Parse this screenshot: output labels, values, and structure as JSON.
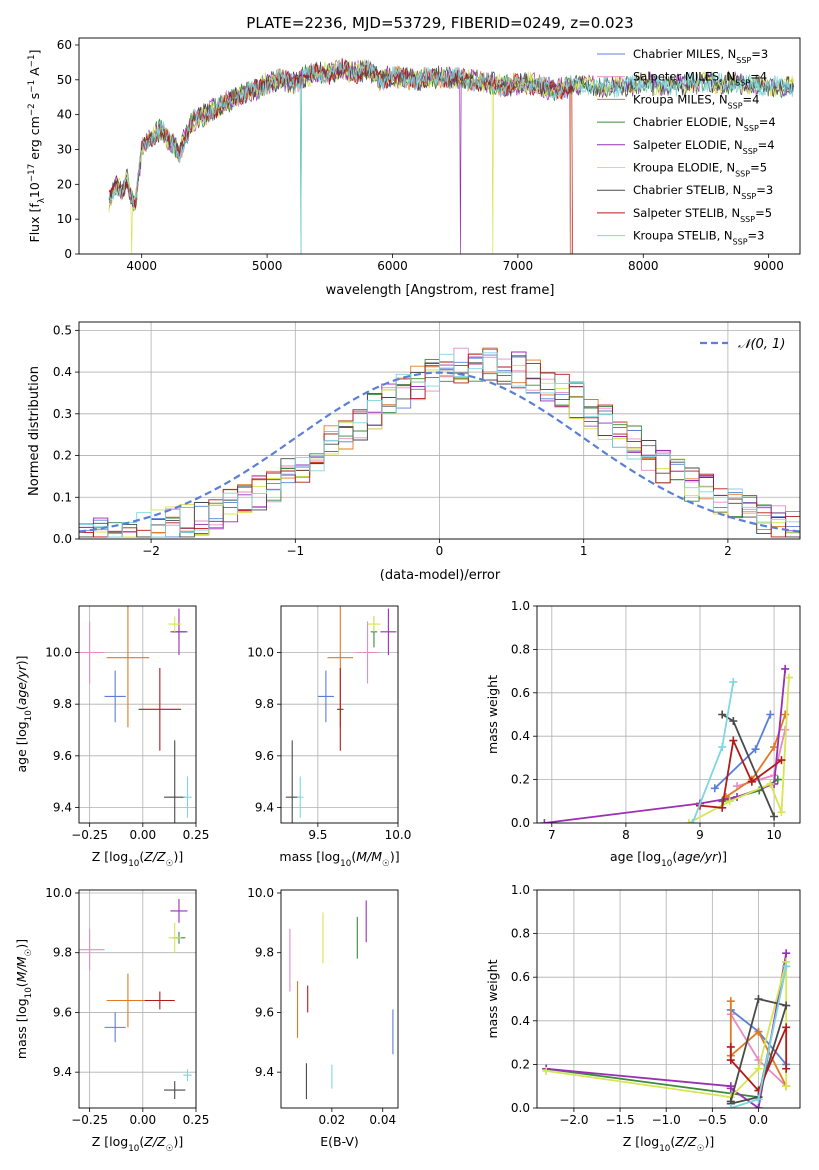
{
  "figure_title": "PLATE=2236, MJD=53729, FIBERID=0249, z=0.023",
  "colors": {
    "c0": "#5b7fd6",
    "c1": "#e58cc4",
    "c2": "#e07a23",
    "c3": "#3a8a3a",
    "c4": "#9a2fb5",
    "c5": "#d6e550",
    "c6": "#4a4a4a",
    "c7": "#b01b1b",
    "c8": "#7ed6e0",
    "gauss": "#5b7fd6",
    "grid": "#b0b0b0"
  },
  "chart_data": [
    {
      "id": "spectrum",
      "type": "line",
      "title": "PLATE=2236, MJD=53729, FIBERID=0249, z=0.023",
      "xlabel": "wavelength [Angstrom, rest frame]",
      "ylabel": "Flux [f_λ10^-17 erg cm^-2 s^-1 A^-1]",
      "xlim": [
        3500,
        9250
      ],
      "ylim": [
        0,
        62
      ],
      "xticks": [
        4000,
        5000,
        6000,
        7000,
        8000,
        9000
      ],
      "yticks": [
        0,
        10,
        20,
        30,
        40,
        50,
        60
      ],
      "grid": false,
      "legend_position": "top-right",
      "legend": [
        {
          "model": "Chabrier MILES",
          "n": "3"
        },
        {
          "model": "Salpeter MILES",
          "n": "4"
        },
        {
          "model": "Kroupa MILES",
          "n": "4"
        },
        {
          "model": "Chabrier ELODIE",
          "n": "4"
        },
        {
          "model": "Salpeter ELODIE",
          "n": "4"
        },
        {
          "model": "Kroupa ELODIE",
          "n": "5"
        },
        {
          "model": "Chabrier STELIB",
          "n": "3"
        },
        {
          "model": "Salpeter STELIB",
          "n": "5"
        },
        {
          "model": "Kroupa STELIB",
          "n": "3"
        }
      ],
      "x": [
        3740,
        3800,
        3850,
        3880,
        3920,
        3950,
        4000,
        4050,
        4100,
        4150,
        4200,
        4250,
        4300,
        4350,
        4400,
        4500,
        4600,
        4700,
        4800,
        4900,
        5000,
        5100,
        5200,
        5300,
        5400,
        5500,
        5600,
        5700,
        5800,
        5900,
        6000,
        6200,
        6400,
        6600,
        6800,
        6900,
        7000,
        7100,
        7200,
        7300,
        7400,
        7500,
        7600,
        7800,
        8000,
        8200,
        8400,
        8600,
        8800,
        9000,
        9200
      ],
      "y": [
        15,
        20,
        18,
        22,
        16,
        14,
        30,
        33,
        34,
        36,
        33,
        32,
        29,
        34,
        38,
        40,
        42,
        44,
        46,
        47,
        49,
        50,
        49,
        51,
        52,
        52,
        53,
        52,
        53,
        50,
        51,
        50,
        51,
        50,
        49,
        48,
        49,
        49,
        48,
        47,
        48,
        49,
        48,
        48,
        49,
        48,
        49,
        49,
        49,
        48,
        48
      ],
      "end_wavelength": {
        "Salpeter STELIB": 7440,
        "Salpeter MILES": 7420,
        "Kroupa MILES": 7430,
        "Chabrier MILES": 7420
      },
      "dips": [
        {
          "x": 3920,
          "depth": 0
        },
        {
          "x": 5270,
          "depth": 0
        },
        {
          "x": 6540,
          "depth": 0
        },
        {
          "x": 6800,
          "depth": 0
        }
      ]
    },
    {
      "id": "residuals",
      "type": "line",
      "xlabel": "(data-model)/error",
      "ylabel": "Normed distribution",
      "xlim": [
        -2.5,
        2.5
      ],
      "ylim": [
        0,
        0.52
      ],
      "xticks": [
        -2,
        -1,
        0,
        1,
        2
      ],
      "yticks": [
        0.0,
        0.1,
        0.2,
        0.3,
        0.4,
        0.5
      ],
      "grid": true,
      "legend_position": "top-right",
      "gaussian_label": "𝒩(0, 1)",
      "bin_width": 0.1
    },
    {
      "id": "age-vs-Z",
      "type": "scatter",
      "xlabel": "Z [log10(Z/Z☉)]",
      "ylabel": "age  [log10(age/yr)]",
      "xlim": [
        -0.3,
        0.25
      ],
      "ylim": [
        9.34,
        10.18
      ],
      "xticks": [
        -0.25,
        0.0,
        0.25
      ],
      "yticks": [
        9.4,
        9.6,
        9.8,
        10.0
      ],
      "grid": true,
      "points": [
        {
          "x": -0.13,
          "y": 9.83,
          "xerr": 0.05,
          "yerr": 0.1,
          "c": "c0"
        },
        {
          "x": -0.25,
          "y": 10.0,
          "xerr": 0.07,
          "yerr": 0.12,
          "c": "c1"
        },
        {
          "x": -0.07,
          "y": 9.98,
          "xerr": 0.1,
          "yerr": 0.27,
          "c": "c2"
        },
        {
          "x": 0.17,
          "y": 10.08,
          "xerr": 0.03,
          "yerr": 0.03,
          "c": "c3"
        },
        {
          "x": 0.17,
          "y": 10.08,
          "xerr": 0.04,
          "yerr": 0.09,
          "c": "c4"
        },
        {
          "x": 0.15,
          "y": 10.11,
          "xerr": 0.03,
          "yerr": 0.03,
          "c": "c5"
        },
        {
          "x": 0.15,
          "y": 9.44,
          "xerr": 0.05,
          "yerr": 0.22,
          "c": "c6"
        },
        {
          "x": 0.08,
          "y": 9.78,
          "xerr": 0.1,
          "yerr": 0.16,
          "c": "c7"
        },
        {
          "x": 0.21,
          "y": 9.44,
          "xerr": 0.02,
          "yerr": 0.08,
          "c": "c8"
        }
      ]
    },
    {
      "id": "age-vs-mass",
      "type": "scatter",
      "xlabel": "mass [log10(M/M☉)]",
      "ylabel": "",
      "xlim": [
        9.27,
        10.0
      ],
      "ylim": [
        9.34,
        10.18
      ],
      "xticks": [
        9.5,
        10.0
      ],
      "yticks": [
        9.4,
        9.6,
        9.8,
        10.0
      ],
      "grid": true,
      "points": [
        {
          "x": 9.55,
          "y": 9.83,
          "xerr": 0.05,
          "yerr": 0.1,
          "c": "c0"
        },
        {
          "x": 9.81,
          "y": 10.0,
          "xerr": 0.07,
          "yerr": 0.12,
          "c": "c1"
        },
        {
          "x": 9.64,
          "y": 9.98,
          "xerr": 0.08,
          "yerr": 0.27,
          "c": "c2"
        },
        {
          "x": 9.85,
          "y": 10.08,
          "xerr": 0.02,
          "yerr": 0.06,
          "c": "c3"
        },
        {
          "x": 9.94,
          "y": 10.08,
          "xerr": 0.05,
          "yerr": 0.09,
          "c": "c4"
        },
        {
          "x": 9.85,
          "y": 10.11,
          "xerr": 0.04,
          "yerr": 0.03,
          "c": "c5"
        },
        {
          "x": 9.34,
          "y": 9.44,
          "xerr": 0.04,
          "yerr": 0.22,
          "c": "c6"
        },
        {
          "x": 9.64,
          "y": 9.78,
          "xerr": 0.02,
          "yerr": 0.16,
          "c": "c7"
        },
        {
          "x": 9.39,
          "y": 9.44,
          "xerr": 0.02,
          "yerr": 0.08,
          "c": "c8"
        }
      ]
    },
    {
      "id": "weight-vs-age",
      "type": "line",
      "xlabel": "age  [log10(age/yr)]",
      "ylabel": "mass weight",
      "xlim": [
        6.8,
        10.35
      ],
      "ylim": [
        0,
        1
      ],
      "xticks": [
        7,
        8,
        9,
        10
      ],
      "yticks": [
        0.0,
        0.2,
        0.4,
        0.6,
        0.8,
        1.0
      ],
      "grid": true,
      "series": [
        {
          "c": "c0",
          "x": [
            9.2,
            9.75,
            9.95
          ],
          "y": [
            0.16,
            0.34,
            0.5
          ]
        },
        {
          "c": "c1",
          "x": [
            9.5,
            9.8,
            10.0,
            10.15
          ],
          "y": [
            0.17,
            0.2,
            0.22,
            0.43
          ]
        },
        {
          "c": "c2",
          "x": [
            9.35,
            9.7,
            10.0,
            10.15
          ],
          "y": [
            0.12,
            0.2,
            0.35,
            0.5
          ]
        },
        {
          "c": "c3",
          "x": [
            9.3,
            9.8,
            10.05
          ],
          "y": [
            0.1,
            0.15,
            0.2
          ]
        },
        {
          "c": "c4",
          "x": [
            6.9,
            9.0,
            9.5,
            10.0,
            10.15
          ],
          "y": [
            0.0,
            0.09,
            0.12,
            0.18,
            0.71
          ]
        },
        {
          "c": "c5",
          "x": [
            8.85,
            9.4,
            9.95,
            10.1,
            10.2
          ],
          "y": [
            0.0,
            0.1,
            0.18,
            0.05,
            0.67
          ]
        },
        {
          "c": "c6",
          "x": [
            9.3,
            9.45,
            10.0
          ],
          "y": [
            0.5,
            0.47,
            0.03
          ]
        },
        {
          "c": "c7",
          "x": [
            9.0,
            9.3,
            9.45,
            9.7,
            10.1
          ],
          "y": [
            0.08,
            0.07,
            0.38,
            0.19,
            0.29
          ]
        },
        {
          "c": "c8",
          "x": [
            8.9,
            9.3,
            9.45
          ],
          "y": [
            0.0,
            0.35,
            0.65
          ]
        }
      ]
    },
    {
      "id": "mass-vs-Z",
      "type": "scatter",
      "xlabel": "Z [log10(Z/Z☉)]",
      "ylabel": "mass [log10(M/M☉)]",
      "xlim": [
        -0.3,
        0.25
      ],
      "ylim": [
        9.28,
        10.01
      ],
      "xticks": [
        -0.25,
        0.0,
        0.25
      ],
      "yticks": [
        9.4,
        9.6,
        9.8,
        10.0
      ],
      "grid": true,
      "points": [
        {
          "x": -0.13,
          "y": 9.55,
          "xerr": 0.05,
          "yerr": 0.05,
          "c": "c0"
        },
        {
          "x": -0.25,
          "y": 9.81,
          "xerr": 0.07,
          "yerr": 0.07,
          "c": "c1"
        },
        {
          "x": -0.07,
          "y": 9.64,
          "xerr": 0.1,
          "yerr": 0.09,
          "c": "c2"
        },
        {
          "x": 0.17,
          "y": 9.85,
          "xerr": 0.03,
          "yerr": 0.02,
          "c": "c3"
        },
        {
          "x": 0.17,
          "y": 9.94,
          "xerr": 0.04,
          "yerr": 0.04,
          "c": "c4"
        },
        {
          "x": 0.15,
          "y": 9.85,
          "xerr": 0.03,
          "yerr": 0.05,
          "c": "c5"
        },
        {
          "x": 0.15,
          "y": 9.34,
          "xerr": 0.05,
          "yerr": 0.03,
          "c": "c6"
        },
        {
          "x": 0.08,
          "y": 9.64,
          "xerr": 0.07,
          "yerr": 0.03,
          "c": "c7"
        },
        {
          "x": 0.21,
          "y": 9.39,
          "xerr": 0.02,
          "yerr": 0.02,
          "c": "c8"
        }
      ]
    },
    {
      "id": "mass-vs-ebv",
      "type": "scatter",
      "xlabel": "E(B-V)",
      "ylabel": "",
      "xlim": [
        0.0,
        0.046
      ],
      "ylim": [
        9.28,
        10.01
      ],
      "xticks": [
        0.02,
        0.04
      ],
      "yticks": [
        9.4,
        9.6,
        9.8,
        10.0
      ],
      "grid": false,
      "points": [
        {
          "x": 0.044,
          "y": 9.535,
          "xerr": 0,
          "yerr": 0.075,
          "c": "c0"
        },
        {
          "x": 0.0035,
          "y": 9.775,
          "xerr": 0,
          "yerr": 0.105,
          "c": "c1"
        },
        {
          "x": 0.0065,
          "y": 9.61,
          "xerr": 0,
          "yerr": 0.095,
          "c": "c2"
        },
        {
          "x": 0.03,
          "y": 9.85,
          "xerr": 0,
          "yerr": 0.07,
          "c": "c3"
        },
        {
          "x": 0.0335,
          "y": 9.905,
          "xerr": 0,
          "yerr": 0.07,
          "c": "c4"
        },
        {
          "x": 0.0165,
          "y": 9.85,
          "xerr": 0,
          "yerr": 0.085,
          "c": "c5"
        },
        {
          "x": 0.01,
          "y": 9.37,
          "xerr": 0,
          "yerr": 0.06,
          "c": "c6"
        },
        {
          "x": 0.0105,
          "y": 9.645,
          "xerr": 0,
          "yerr": 0.045,
          "c": "c7"
        },
        {
          "x": 0.02,
          "y": 9.385,
          "xerr": 0,
          "yerr": 0.04,
          "c": "c8"
        }
      ]
    },
    {
      "id": "weight-vs-Z",
      "type": "line",
      "xlabel": "Z [log10(Z/Z☉)]",
      "ylabel": "mass weight",
      "xlim": [
        -2.4,
        0.45
      ],
      "ylim": [
        0,
        1
      ],
      "xticks": [
        -2.0,
        -1.5,
        -1.0,
        -0.5,
        0.0
      ],
      "yticks": [
        0.0,
        0.2,
        0.4,
        0.6,
        0.8,
        1.0
      ],
      "grid": true,
      "series": [
        {
          "c": "c0",
          "x": [
            -0.3,
            0.0,
            0.3
          ],
          "y": [
            0.45,
            0.35,
            0.2
          ]
        },
        {
          "c": "c1",
          "x": [
            -0.3,
            0.0,
            0.3
          ],
          "y": [
            0.43,
            0.22,
            0.1
          ]
        },
        {
          "c": "c2",
          "x": [
            -0.3,
            -0.3,
            0.0,
            0.3
          ],
          "y": [
            0.49,
            0.24,
            0.35,
            0.1
          ]
        },
        {
          "c": "c3",
          "x": [
            -2.3,
            0.0,
            0.3
          ],
          "y": [
            0.18,
            0.05,
            0.65
          ]
        },
        {
          "c": "c4",
          "x": [
            -2.3,
            -0.3,
            -0.3,
            0.0,
            0.3
          ],
          "y": [
            0.18,
            0.1,
            0.09,
            0.0,
            0.71
          ]
        },
        {
          "c": "c5",
          "x": [
            -2.3,
            -0.3,
            0.0,
            0.3,
            0.3
          ],
          "y": [
            0.17,
            0.05,
            0.18,
            0.67,
            0.1
          ]
        },
        {
          "c": "c6",
          "x": [
            -0.3,
            0.0,
            0.3,
            0.0,
            -0.3
          ],
          "y": [
            0.03,
            0.5,
            0.47,
            0.05,
            0.02
          ]
        },
        {
          "c": "c7",
          "x": [
            -0.3,
            -0.3,
            0.0,
            0.3,
            0.3
          ],
          "y": [
            0.28,
            0.22,
            0.08,
            0.37,
            0.18
          ]
        },
        {
          "c": "c8",
          "x": [
            -0.3,
            0.0,
            0.3
          ],
          "y": [
            0.0,
            0.04,
            0.65
          ]
        }
      ]
    }
  ]
}
